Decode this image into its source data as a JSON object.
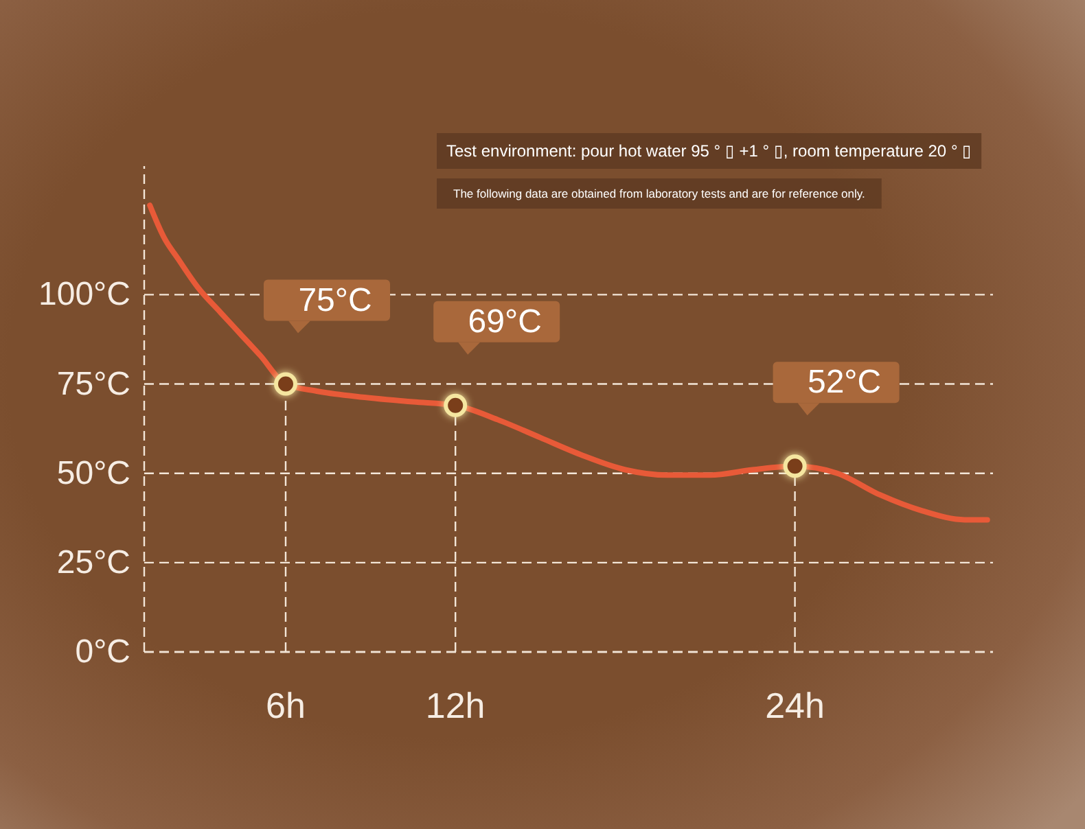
{
  "chart_data": {
    "type": "line",
    "annotations": [
      "Test environment: pour hot water 95 ° ▯ +1 ° ▯, room temperature 20 ° ▯",
      "The following data are obtained from laboratory tests and are for reference only."
    ],
    "xlim": [
      1,
      31
    ],
    "xticks": [
      {
        "value": 6,
        "label": "6h"
      },
      {
        "value": 12,
        "label": "12h"
      },
      {
        "value": 24,
        "label": "24h"
      }
    ],
    "ylim": [
      0,
      136
    ],
    "yticks": [
      {
        "value": 0,
        "label": "0°C"
      },
      {
        "value": 25,
        "label": "25°C"
      },
      {
        "value": 50,
        "label": "50°C"
      },
      {
        "value": 75,
        "label": "75°C"
      },
      {
        "value": 100,
        "label": "100°C"
      }
    ],
    "grid": "y",
    "series": [
      {
        "color": "#e85a38",
        "marker": "none",
        "line_style": "solid",
        "x": [
          1.2,
          1.7,
          2.2,
          2.9,
          3.7,
          4.4,
          5.1,
          6,
          7.1,
          8.5,
          10.5,
          12,
          13.5,
          15,
          16.5,
          18,
          19.5,
          21,
          22.5,
          24,
          25.5,
          27,
          28.5,
          30,
          30.8
        ],
        "values": [
          125,
          116,
          110,
          102,
          95,
          89,
          83,
          75,
          73,
          71.5,
          70,
          69,
          65,
          60,
          55,
          51,
          49.5,
          49.5,
          51,
          52,
          50,
          44,
          39.5,
          37,
          37
        ]
      },
      {
        "type": "lollipop",
        "color": "#f5e6a0",
        "marker": "circle",
        "line_style": "dashed",
        "x": [
          6,
          12,
          24
        ],
        "values": [
          75,
          69,
          52
        ],
        "value_labels": [
          "75°C",
          "69°C",
          "52°C"
        ]
      }
    ]
  }
}
